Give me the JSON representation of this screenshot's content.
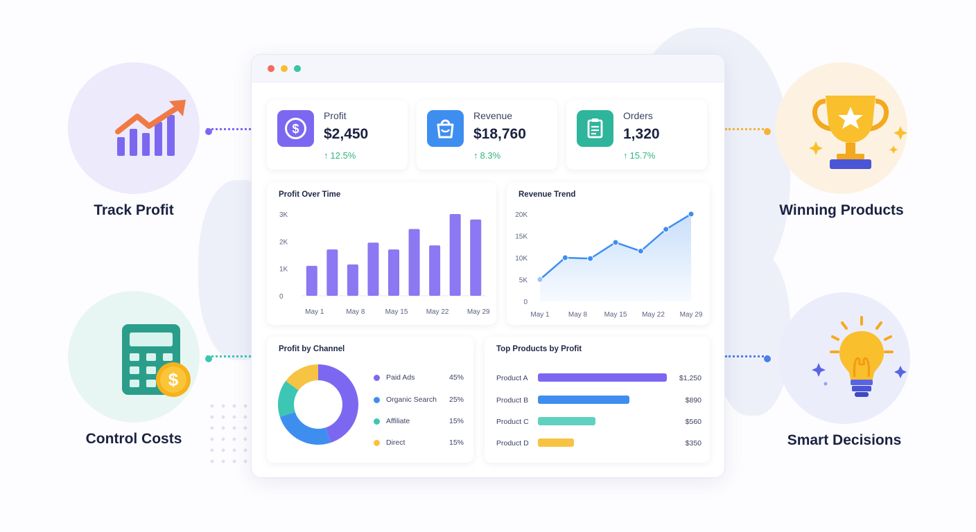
{
  "colors": {
    "purple": "#7c68f0",
    "blue": "#3e8ef0",
    "teal": "#3cc6b3",
    "yellow": "#f6c343",
    "green": "#2fb57e",
    "orange": "#f07a45"
  },
  "features": [
    {
      "id": "track-profit",
      "label": "Track Profit",
      "icon": "trend-chart-icon"
    },
    {
      "id": "control-costs",
      "label": "Control Costs",
      "icon": "calculator-dollar-icon"
    },
    {
      "id": "winning-products",
      "label": "Winning Products",
      "icon": "trophy-icon"
    },
    {
      "id": "smart-decisions",
      "label": "Smart Decisions",
      "icon": "lightbulb-icon"
    }
  ],
  "kpis": [
    {
      "label": "Profit",
      "value": "$2,450",
      "change": "12.5%",
      "icon": "dollar-circle-icon"
    },
    {
      "label": "Revenue",
      "value": "$18,760",
      "change": "8.3%",
      "icon": "shopping-bag-icon"
    },
    {
      "label": "Orders",
      "value": "1,320",
      "change": "15.7%",
      "icon": "clipboard-icon"
    }
  ],
  "profit_chart": {
    "title": "Profit Over Time",
    "y_ticks": [
      "3K",
      "2K",
      "1K",
      "0"
    ],
    "x_labels": [
      "May 1",
      "May 8",
      "May 15",
      "May 22",
      "May 29"
    ]
  },
  "revenue_chart": {
    "title": "Revenue Trend",
    "y_ticks": [
      "20K",
      "15K",
      "10K",
      "5K",
      "0"
    ],
    "x_labels": [
      "May 1",
      "May 8",
      "May 15",
      "May 22",
      "May 29"
    ]
  },
  "channel_chart": {
    "title": "Profit by Channel",
    "legend": [
      {
        "name": "Paid Ads",
        "pct": "45%"
      },
      {
        "name": "Organic Search",
        "pct": "25%"
      },
      {
        "name": "Affiliate",
        "pct": "15%"
      },
      {
        "name": "Direct",
        "pct": "15%"
      }
    ]
  },
  "products_chart": {
    "title": "Top Products by Profit",
    "rows": [
      {
        "name": "Product A",
        "value": "$1,250"
      },
      {
        "name": "Product B",
        "value": "$890"
      },
      {
        "name": "Product C",
        "value": "$560"
      },
      {
        "name": "Product D",
        "value": "$350"
      }
    ]
  },
  "chart_data": [
    {
      "type": "bar",
      "title": "Profit Over Time",
      "xlabel": "",
      "ylabel": "",
      "ylim": [
        0,
        3000
      ],
      "grid": false,
      "x_tick_labels": [
        "May 1",
        "May 8",
        "May 15",
        "May 22",
        "May 29"
      ],
      "values": [
        1100,
        1700,
        1150,
        1950,
        1700,
        2450,
        1850,
        3000,
        2800
      ]
    },
    {
      "type": "area",
      "title": "Revenue Trend",
      "xlabel": "",
      "ylabel": "",
      "ylim": [
        0,
        20000
      ],
      "grid": false,
      "x_tick_labels": [
        "May 1",
        "May 8",
        "May 15",
        "May 22",
        "May 29"
      ],
      "values": [
        5000,
        10000,
        9800,
        13500,
        11500,
        16500,
        20000
      ]
    },
    {
      "type": "pie",
      "title": "Profit by Channel",
      "categories": [
        "Paid Ads",
        "Organic Search",
        "Affiliate",
        "Direct"
      ],
      "values": [
        45,
        25,
        15,
        15
      ],
      "legend": "right"
    },
    {
      "type": "bar",
      "orientation": "horizontal",
      "title": "Top Products by Profit",
      "categories": [
        "Product A",
        "Product B",
        "Product C",
        "Product D"
      ],
      "values": [
        1250,
        890,
        560,
        350
      ]
    }
  ]
}
